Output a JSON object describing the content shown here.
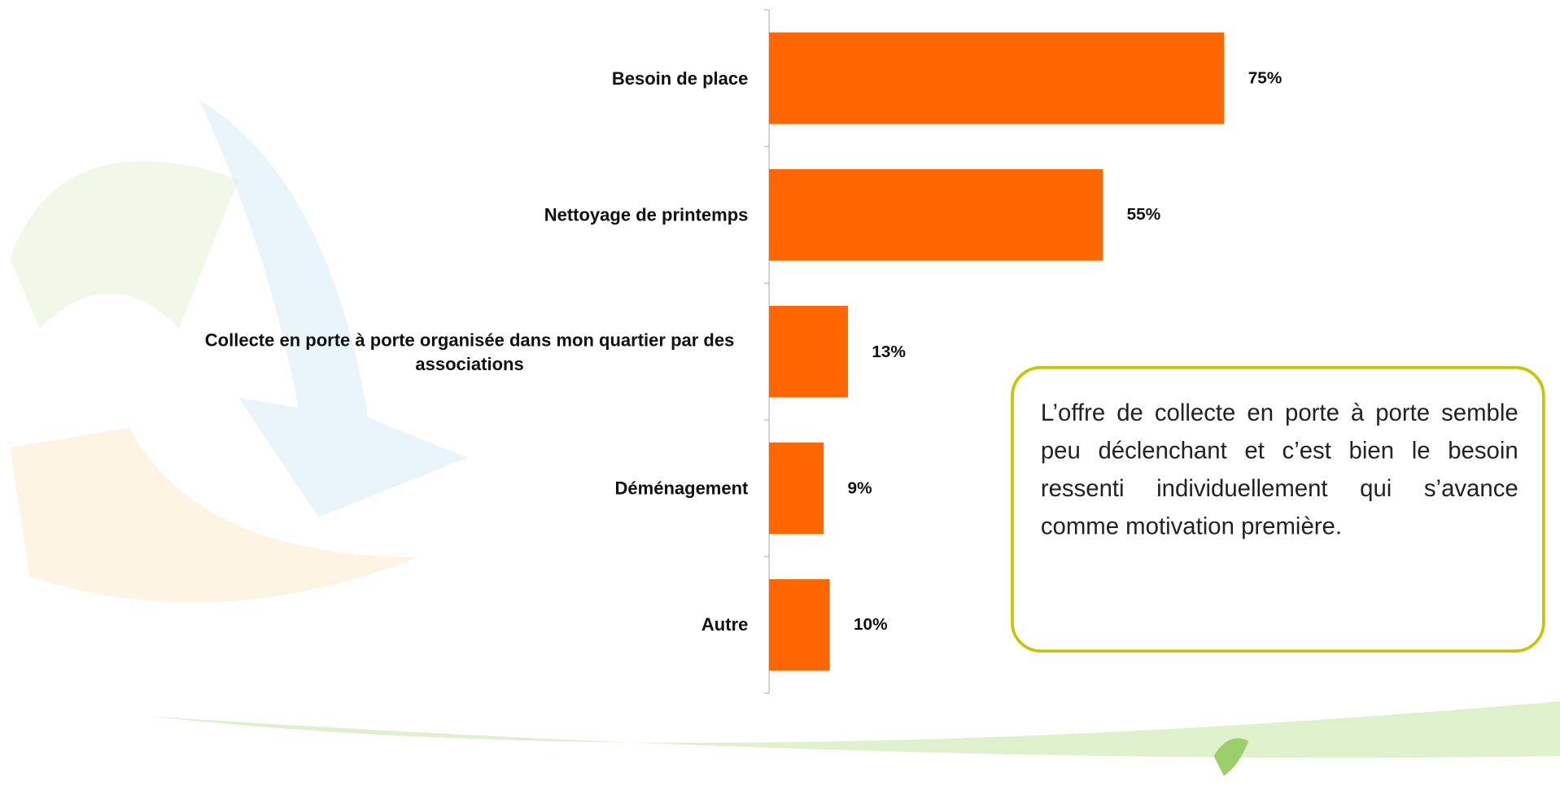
{
  "chart_data": {
    "type": "bar",
    "orientation": "horizontal",
    "categories": [
      "Besoin de place",
      "Nettoyage de printemps",
      "Collecte en porte à porte organisée dans mon quartier par des associations",
      "Déménagement",
      "Autre"
    ],
    "values": [
      75,
      55,
      13,
      9,
      10
    ],
    "value_labels": [
      "75%",
      "55%",
      "13%",
      "9%",
      "10%"
    ],
    "color": "#ff6600"
  },
  "annotation": "L’offre de collecte en porte à porte semble peu déclenchant et c’est bien le besoin ressenti individuellement qui s’avance comme motivation première."
}
